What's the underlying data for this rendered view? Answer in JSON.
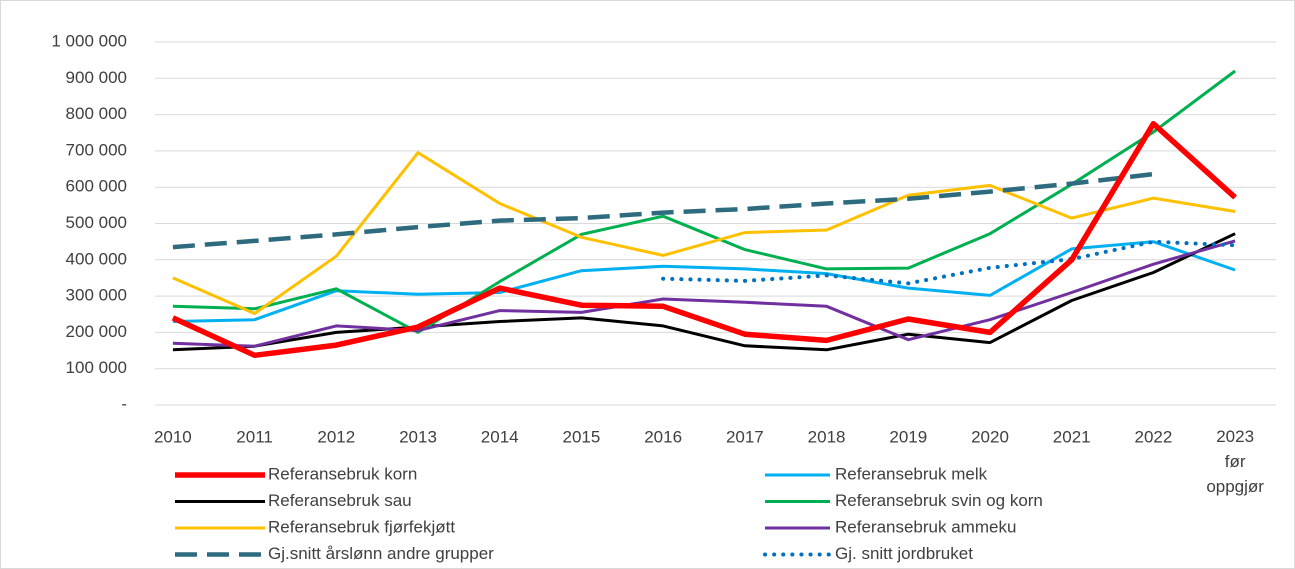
{
  "chart_data": {
    "type": "line",
    "categories": [
      "2010",
      "2011",
      "2012",
      "2013",
      "2014",
      "2015",
      "2016",
      "2017",
      "2018",
      "2019",
      "2020",
      "2021",
      "2022",
      "2023 før oppgjør"
    ],
    "ylim": [
      0,
      1000000
    ],
    "yticks": [
      {
        "value": 0,
        "label": "-"
      },
      {
        "value": 100000,
        "label": "100 000"
      },
      {
        "value": 200000,
        "label": "200 000"
      },
      {
        "value": 300000,
        "label": "300 000"
      },
      {
        "value": 400000,
        "label": "400 000"
      },
      {
        "value": 500000,
        "label": "500 000"
      },
      {
        "value": 600000,
        "label": "600 000"
      },
      {
        "value": 700000,
        "label": "700 000"
      },
      {
        "value": 800000,
        "label": "800 000"
      },
      {
        "value": 900000,
        "label": "900 000"
      },
      {
        "value": 1000000,
        "label": "1 000 000"
      }
    ],
    "grid": true,
    "legend": "bottom",
    "series": [
      {
        "name": "Referansebruk korn",
        "color": "#ff0000",
        "line_style": "solid",
        "values": [
          240000,
          137000,
          165000,
          215000,
          322000,
          275000,
          272000,
          195000,
          178000,
          237000,
          200000,
          400000,
          775000,
          572000
        ]
      },
      {
        "name": "Referansebruk melk",
        "color": "#00b0f0",
        "line_style": "solid",
        "values": [
          230000,
          235000,
          315000,
          305000,
          310000,
          370000,
          382000,
          375000,
          362000,
          322000,
          302000,
          430000,
          450000,
          372000
        ]
      },
      {
        "name": "Referansebruk sau",
        "color": "#000000",
        "line_style": "solid",
        "values": [
          152000,
          162000,
          200000,
          215000,
          230000,
          240000,
          218000,
          163000,
          152000,
          195000,
          172000,
          288000,
          365000,
          472000
        ]
      },
      {
        "name": "Referansebruk svin og korn",
        "color": "#00b050",
        "line_style": "solid",
        "values": [
          272000,
          265000,
          320000,
          200000,
          340000,
          470000,
          520000,
          428000,
          375000,
          377000,
          472000,
          608000,
          752000,
          920000
        ]
      },
      {
        "name": "Referansebruk fjørfekjøtt",
        "color": "#ffc000",
        "line_style": "solid",
        "values": [
          350000,
          252000,
          410000,
          695000,
          555000,
          462000,
          412000,
          475000,
          482000,
          578000,
          605000,
          515000,
          570000,
          533000
        ]
      },
      {
        "name": "Referansebruk ammeku",
        "color": "#7030a0",
        "line_style": "solid",
        "values": [
          170000,
          162000,
          218000,
          205000,
          260000,
          255000,
          292000,
          283000,
          272000,
          180000,
          235000,
          310000,
          388000,
          452000
        ]
      },
      {
        "name": "Gj.snitt årslønn andre grupper",
        "color": "#2e6b7e",
        "line_style": "dashed",
        "values": [
          435000,
          452000,
          470000,
          490000,
          508000,
          515000,
          530000,
          540000,
          555000,
          568000,
          588000,
          610000,
          636000,
          null
        ]
      },
      {
        "name": "Gj. snitt jordbruket",
        "color": "#0070c0",
        "line_style": "dotted",
        "values": [
          null,
          null,
          null,
          null,
          null,
          null,
          348000,
          342000,
          357000,
          335000,
          378000,
          402000,
          450000,
          440000
        ]
      }
    ]
  }
}
